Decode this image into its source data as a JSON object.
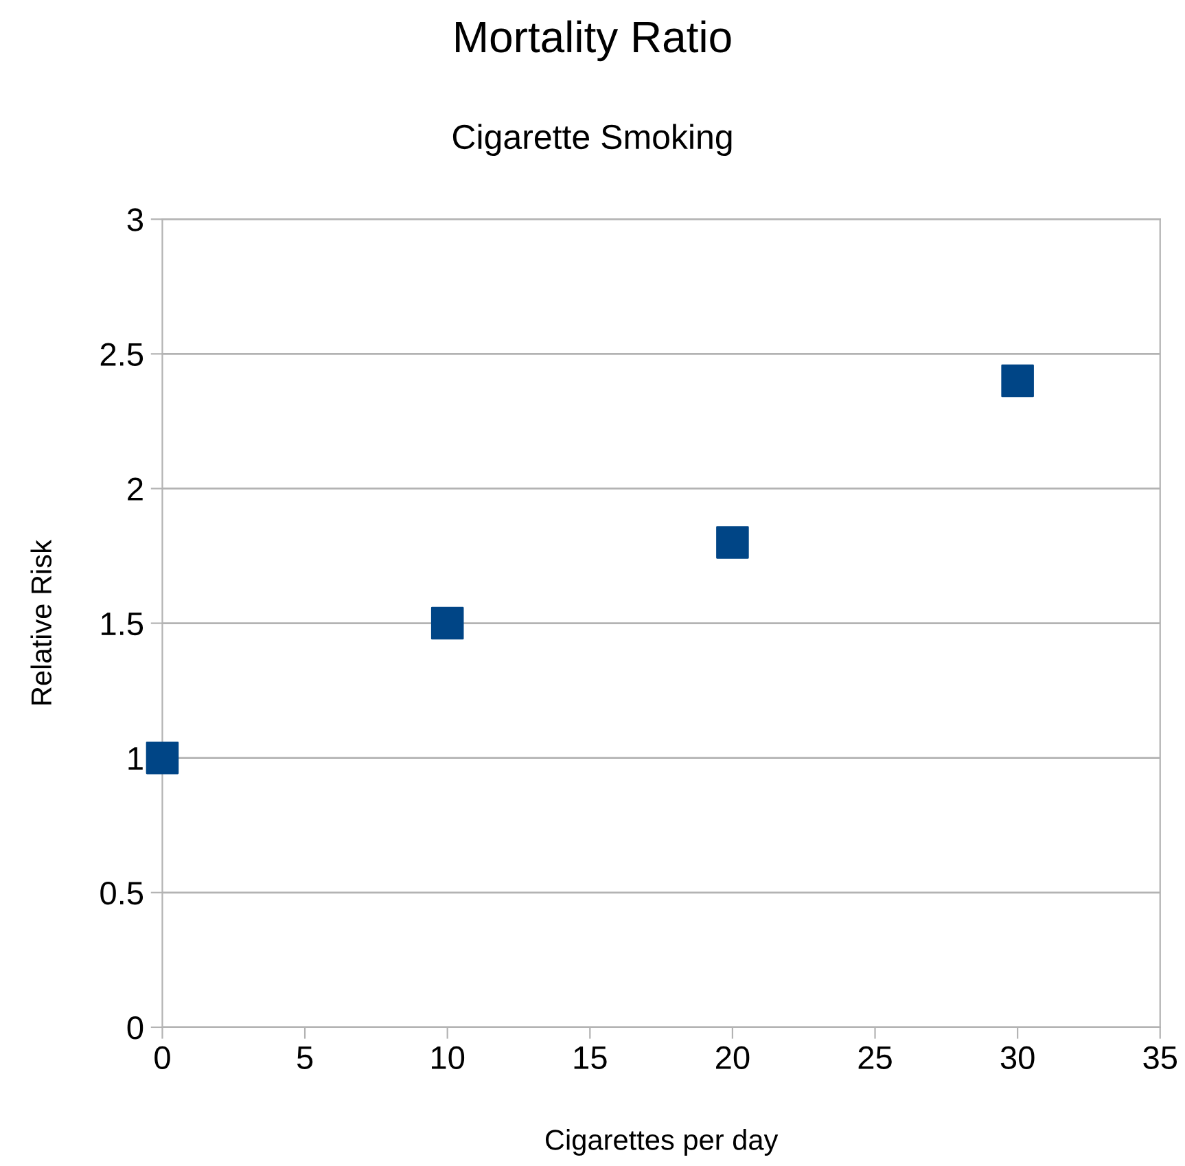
{
  "chart_data": {
    "type": "scatter",
    "title": "Mortality Ratio",
    "subtitle": "Cigarette Smoking",
    "xlabel": "Cigarettes per day",
    "ylabel": "Relative Risk",
    "x": [
      0,
      10,
      20,
      30
    ],
    "series": [
      {
        "color": "#004586",
        "values": [
          1,
          1.5,
          1.8,
          2.4
        ]
      }
    ],
    "xlim": [
      0,
      35
    ],
    "xticks": [
      0,
      5,
      10,
      15,
      20,
      25,
      30,
      35
    ],
    "ylim": [
      0,
      3
    ],
    "yticks": [
      0,
      0.5,
      1,
      1.5,
      2,
      2.5,
      3
    ],
    "grid": "y",
    "marker": "square",
    "legend": false
  }
}
